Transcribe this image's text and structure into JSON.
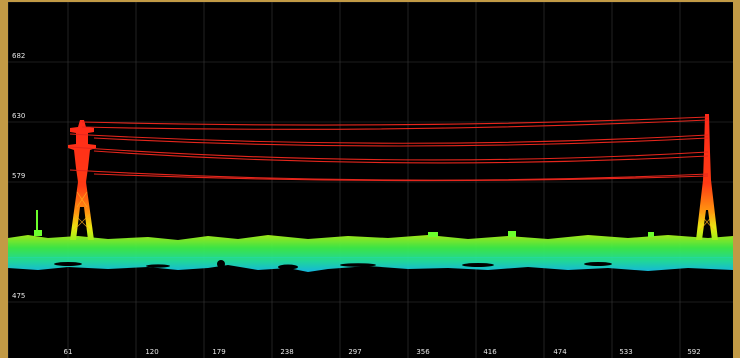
{
  "viewer": {
    "colors": {
      "background": "#000000",
      "frame": "#c29a45",
      "grid": "#3a3a3a",
      "label": "#e6e6e6",
      "towers": "#ff2a1a",
      "wires": "#e5261c",
      "ground_top": "#a6f21c",
      "ground_mid": "#29e86f",
      "ground_bottom": "#18c6e6"
    }
  },
  "chart_data": {
    "type": "scatter",
    "x_ticks": [
      "61",
      "120",
      "179",
      "238",
      "297",
      "356",
      "416",
      "474",
      "533",
      "592"
    ],
    "y_ticks": [
      "682",
      "630",
      "579",
      "475"
    ],
    "grid": true
  }
}
